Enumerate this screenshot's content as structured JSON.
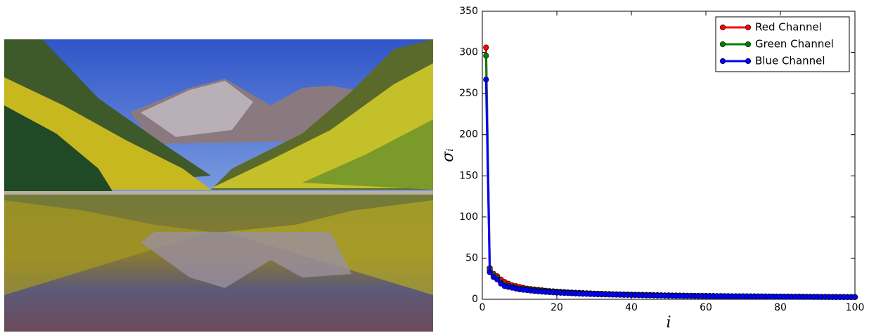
{
  "chart_data": {
    "type": "line",
    "xlabel": "i",
    "ylabel": "σᵢ",
    "x": [
      1,
      2,
      3,
      4,
      5,
      6,
      7,
      8,
      9,
      10,
      11,
      12,
      13,
      14,
      15,
      16,
      17,
      18,
      19,
      20,
      21,
      22,
      23,
      24,
      25,
      26,
      27,
      28,
      29,
      30,
      31,
      32,
      33,
      34,
      35,
      36,
      37,
      38,
      39,
      40,
      41,
      42,
      43,
      44,
      45,
      46,
      47,
      48,
      49,
      50,
      51,
      52,
      53,
      54,
      55,
      56,
      57,
      58,
      59,
      60,
      61,
      62,
      63,
      64,
      65,
      66,
      67,
      68,
      69,
      70,
      71,
      72,
      73,
      74,
      75,
      76,
      77,
      78,
      79,
      80,
      81,
      82,
      83,
      84,
      85,
      86,
      87,
      88,
      89,
      90,
      91,
      92,
      93,
      94,
      95,
      96,
      97,
      98,
      99,
      100
    ],
    "series": [
      {
        "name": "Red Channel",
        "color": "#ff0000",
        "values": [
          306,
          38,
          31,
          28,
          24,
          21,
          19,
          17,
          16,
          15,
          14,
          13,
          12.5,
          12,
          11.5,
          11,
          10.5,
          10,
          9.7,
          9.4,
          9.1,
          8.8,
          8.5,
          8.2,
          8,
          7.8,
          7.6,
          7.4,
          7.2,
          7,
          6.8,
          6.7,
          6.5,
          6.4,
          6.2,
          6.1,
          6,
          5.9,
          5.8,
          5.7,
          5.6,
          5.5,
          5.4,
          5.3,
          5.2,
          5.1,
          5,
          4.9,
          4.8,
          4.8,
          4.7,
          4.6,
          4.6,
          4.5,
          4.4,
          4.4,
          4.3,
          4.3,
          4.2,
          4.2,
          4.1,
          4.1,
          4,
          4,
          3.9,
          3.9,
          3.8,
          3.8,
          3.7,
          3.7,
          3.7,
          3.6,
          3.6,
          3.5,
          3.5,
          3.5,
          3.4,
          3.4,
          3.4,
          3.3,
          3.3,
          3.3,
          3.2,
          3.2,
          3.2,
          3.1,
          3.1,
          3.1,
          3,
          3,
          3,
          3,
          2.9,
          2.9,
          2.9,
          2.9,
          2.8,
          2.8,
          2.8,
          2.8
        ]
      },
      {
        "name": "Green Channel",
        "color": "#008000",
        "values": [
          296,
          36,
          29,
          26,
          20,
          18,
          16,
          15,
          14,
          13,
          12.5,
          12,
          11.5,
          11,
          10.5,
          10,
          9.7,
          9.4,
          9.1,
          8.8,
          8.5,
          8.2,
          8,
          7.8,
          7.6,
          7.4,
          7.2,
          7,
          6.8,
          6.7,
          6.5,
          6.4,
          6.2,
          6.1,
          6,
          5.9,
          5.8,
          5.7,
          5.6,
          5.5,
          5.4,
          5.3,
          5.2,
          5.1,
          5,
          4.9,
          4.8,
          4.8,
          4.7,
          4.6,
          4.6,
          4.5,
          4.4,
          4.4,
          4.3,
          4.3,
          4.2,
          4.2,
          4.1,
          4.1,
          4,
          4,
          3.9,
          3.9,
          3.8,
          3.8,
          3.7,
          3.7,
          3.7,
          3.6,
          3.6,
          3.5,
          3.5,
          3.5,
          3.4,
          3.4,
          3.4,
          3.3,
          3.3,
          3.3,
          3.2,
          3.2,
          3.2,
          3.1,
          3.1,
          3.1,
          3,
          3,
          3,
          3,
          2.9,
          2.9,
          2.9,
          2.9,
          2.8,
          2.8,
          2.8,
          2.8,
          2.7,
          2.7
        ]
      },
      {
        "name": "Blue Channel",
        "color": "#0000ff",
        "values": [
          267,
          33,
          27,
          24,
          19,
          16,
          15,
          14,
          13,
          12,
          11.5,
          11,
          10.5,
          10,
          9.6,
          9.2,
          8.9,
          8.6,
          8.3,
          8,
          7.8,
          7.6,
          7.4,
          7.2,
          7,
          6.8,
          6.6,
          6.5,
          6.3,
          6.2,
          6,
          5.9,
          5.8,
          5.7,
          5.6,
          5.5,
          5.4,
          5.3,
          5.2,
          5.1,
          5,
          4.9,
          4.8,
          4.7,
          4.7,
          4.6,
          4.5,
          4.5,
          4.4,
          4.3,
          4.3,
          4.2,
          4.2,
          4.1,
          4.1,
          4,
          4,
          3.9,
          3.9,
          3.8,
          3.8,
          3.7,
          3.7,
          3.6,
          3.6,
          3.6,
          3.5,
          3.5,
          3.4,
          3.4,
          3.4,
          3.3,
          3.3,
          3.3,
          3.2,
          3.2,
          3.2,
          3.1,
          3.1,
          3.1,
          3,
          3,
          3,
          3,
          2.9,
          2.9,
          2.9,
          2.9,
          2.8,
          2.8,
          2.8,
          2.8,
          2.7,
          2.7,
          2.7,
          2.7,
          2.6,
          2.6,
          2.6,
          2.6
        ]
      }
    ],
    "xlim": [
      0,
      100
    ],
    "ylim": [
      0,
      350
    ],
    "xticks": [
      0,
      20,
      40,
      60,
      80,
      100
    ],
    "yticks": [
      0,
      50,
      100,
      150,
      200,
      250,
      300,
      350
    ],
    "legend": "upper right",
    "grid": false
  }
}
